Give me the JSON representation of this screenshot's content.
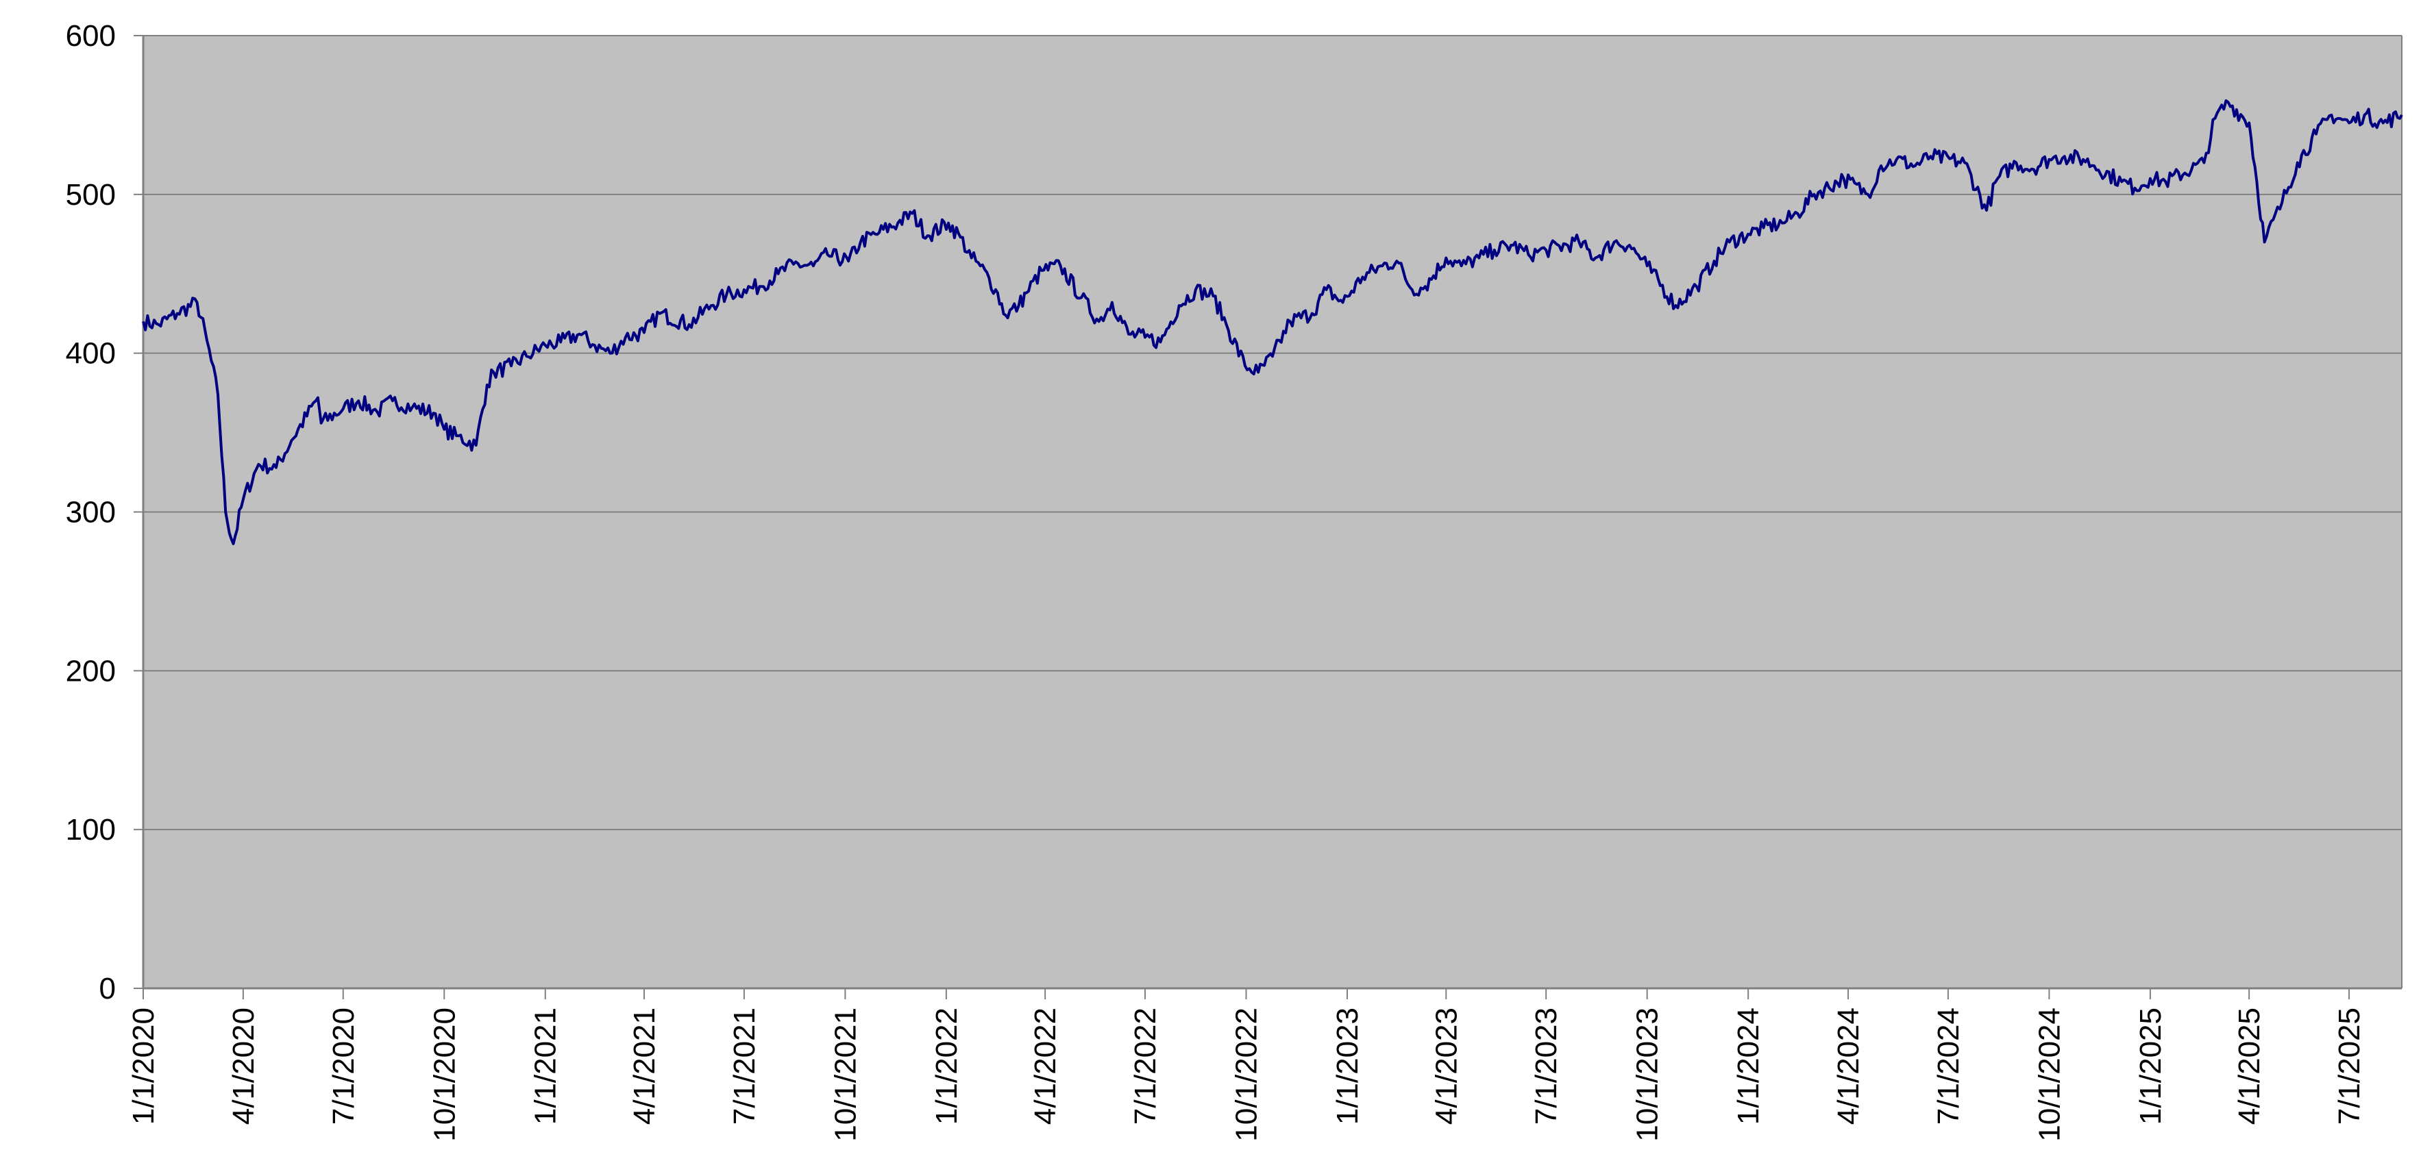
{
  "chart_data": {
    "type": "line",
    "title": "",
    "xlabel": "",
    "ylabel": "",
    "ylim": [
      0,
      600
    ],
    "yticks": [
      "0",
      "100",
      "200",
      "300",
      "400",
      "500",
      "600"
    ],
    "xlim": [
      "2020-01-01",
      "2025-08-18"
    ],
    "xticks": [
      {
        "label": "1/1/2020",
        "date": "2020-01-01"
      },
      {
        "label": "4/1/2020",
        "date": "2020-04-01"
      },
      {
        "label": "7/1/2020",
        "date": "2020-07-01"
      },
      {
        "label": "10/1/2020",
        "date": "2020-10-01"
      },
      {
        "label": "1/1/2021",
        "date": "2021-01-01"
      },
      {
        "label": "4/1/2021",
        "date": "2021-04-01"
      },
      {
        "label": "7/1/2021",
        "date": "2021-07-01"
      },
      {
        "label": "10/1/2021",
        "date": "2021-10-01"
      },
      {
        "label": "1/1/2022",
        "date": "2022-01-01"
      },
      {
        "label": "4/1/2022",
        "date": "2022-04-01"
      },
      {
        "label": "7/1/2022",
        "date": "2022-07-01"
      },
      {
        "label": "10/1/2022",
        "date": "2022-10-01"
      },
      {
        "label": "1/1/2023",
        "date": "2023-01-01"
      },
      {
        "label": "4/1/2023",
        "date": "2023-04-01"
      },
      {
        "label": "7/1/2023",
        "date": "2023-07-01"
      },
      {
        "label": "10/1/2023",
        "date": "2023-10-01"
      },
      {
        "label": "1/1/2024",
        "date": "2024-01-01"
      },
      {
        "label": "4/1/2024",
        "date": "2024-04-01"
      },
      {
        "label": "7/1/2024",
        "date": "2024-07-01"
      },
      {
        "label": "10/1/2024",
        "date": "2024-10-01"
      },
      {
        "label": "1/1/2025",
        "date": "2025-01-01"
      },
      {
        "label": "4/1/2025",
        "date": "2025-04-01"
      },
      {
        "label": "7/1/2025",
        "date": "2025-07-01"
      }
    ],
    "grid": true,
    "legend": "none",
    "colors": {
      "plot_background": "#c0c0c0",
      "line": "#000080",
      "gridline": "#808080",
      "axis": "#808080"
    },
    "series": [
      {
        "x": [
          "2020-01-01",
          "2020-01-15",
          "2020-02-01",
          "2020-02-19",
          "2020-02-28",
          "2020-03-09",
          "2020-03-16",
          "2020-03-23",
          "2020-04-01",
          "2020-04-15",
          "2020-05-01",
          "2020-05-15",
          "2020-06-08",
          "2020-06-11",
          "2020-07-01",
          "2020-07-15",
          "2020-08-01",
          "2020-08-15",
          "2020-09-02",
          "2020-09-23",
          "2020-10-01",
          "2020-10-12",
          "2020-10-30",
          "2020-11-09",
          "2020-11-15",
          "2020-12-01",
          "2020-12-15",
          "2021-01-01",
          "2021-01-15",
          "2021-02-01",
          "2021-02-15",
          "2021-03-01",
          "2021-03-15",
          "2021-04-01",
          "2021-04-15",
          "2021-05-12",
          "2021-06-01",
          "2021-06-15",
          "2021-07-01",
          "2021-07-15",
          "2021-08-01",
          "2021-08-15",
          "2021-09-02",
          "2021-09-15",
          "2021-10-04",
          "2021-10-15",
          "2021-11-01",
          "2021-11-18",
          "2021-12-01",
          "2021-12-15",
          "2022-01-03",
          "2022-01-14",
          "2022-01-24",
          "2022-02-01",
          "2022-02-15",
          "2022-02-24",
          "2022-03-08",
          "2022-03-15",
          "2022-03-29",
          "2022-04-15",
          "2022-05-04",
          "2022-05-20",
          "2022-06-01",
          "2022-06-16",
          "2022-07-01",
          "2022-07-15",
          "2022-08-01",
          "2022-08-16",
          "2022-09-01",
          "2022-09-13",
          "2022-09-30",
          "2022-10-12",
          "2022-10-25",
          "2022-11-10",
          "2022-11-30",
          "2022-12-13",
          "2022-12-28",
          "2023-01-15",
          "2023-02-02",
          "2023-02-15",
          "2023-03-01",
          "2023-03-13",
          "2023-04-01",
          "2023-04-15",
          "2023-05-01",
          "2023-05-15",
          "2023-06-01",
          "2023-06-15",
          "2023-07-01",
          "2023-07-31",
          "2023-08-15",
          "2023-09-01",
          "2023-09-15",
          "2023-10-01",
          "2023-10-27",
          "2023-11-15",
          "2023-12-01",
          "2023-12-15",
          "2024-01-01",
          "2024-01-15",
          "2024-02-01",
          "2024-02-15",
          "2024-03-01",
          "2024-03-28",
          "2024-04-19",
          "2024-05-01",
          "2024-05-15",
          "2024-06-01",
          "2024-06-15",
          "2024-07-16",
          "2024-08-05",
          "2024-08-15",
          "2024-09-01",
          "2024-09-15",
          "2024-10-01",
          "2024-10-15",
          "2024-11-01",
          "2024-11-11",
          "2024-12-06",
          "2024-12-18",
          "2025-01-01",
          "2025-01-15",
          "2025-02-19",
          "2025-03-01",
          "2025-03-13",
          "2025-04-01",
          "2025-04-08",
          "2025-04-15",
          "2025-05-01",
          "2025-05-15",
          "2025-06-01",
          "2025-06-15",
          "2025-07-01",
          "2025-07-15",
          "2025-08-01",
          "2025-08-18"
        ],
        "y": [
          420,
          418,
          425,
          432,
          408,
          374,
          300,
          280,
          308,
          330,
          328,
          345,
          372,
          356,
          365,
          370,
          363,
          370,
          366,
          362,
          352,
          348,
          342,
          380,
          388,
          392,
          398,
          405,
          407,
          412,
          405,
          400,
          410,
          413,
          425,
          418,
          430,
          437,
          440,
          442,
          450,
          456,
          455,
          462,
          458,
          470,
          476,
          482,
          488,
          474,
          482,
          473,
          460,
          455,
          440,
          424,
          430,
          438,
          452,
          455,
          435,
          420,
          432,
          412,
          410,
          407,
          430,
          440,
          436,
          418,
          392,
          388,
          398,
          420,
          425,
          440,
          432,
          448,
          455,
          458,
          440,
          442,
          460,
          455,
          460,
          465,
          468,
          462,
          465,
          470,
          460,
          470,
          468,
          455,
          430,
          442,
          458,
          470,
          475,
          479,
          482,
          488,
          500,
          510,
          500,
          518,
          522,
          518,
          524,
          520,
          490,
          510,
          520,
          516,
          522,
          524,
          522,
          518,
          508,
          504,
          510,
          508,
          520,
          548,
          558,
          545,
          508,
          470,
          495,
          520,
          538,
          550,
          545,
          550,
          545,
          550
        ]
      }
    ]
  }
}
